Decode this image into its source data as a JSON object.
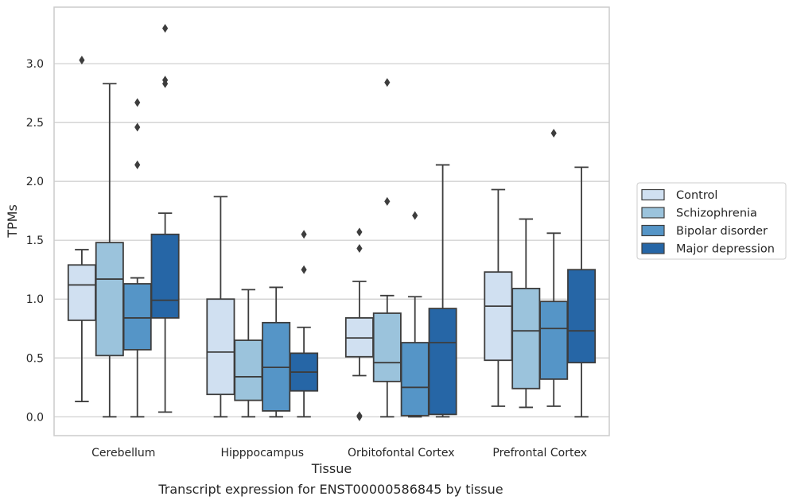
{
  "chart_data": {
    "type": "box",
    "xlabel": "Tissue",
    "ylabel": "TPMs",
    "ylim": [
      -0.16,
      3.48
    ],
    "yticks": [
      0.0,
      0.5,
      1.0,
      1.5,
      2.0,
      2.5,
      3.0
    ],
    "ytick_labels": [
      "0.0",
      "0.5",
      "1.0",
      "1.5",
      "2.0",
      "2.5",
      "3.0"
    ],
    "grid": "horizontal",
    "legend_position": "right",
    "categories": [
      "Cerebellum",
      "Hipppocampus",
      "Orbitofontal Cortex",
      "Prefrontal Cortex"
    ],
    "series": [
      {
        "name": "Control",
        "color": "#d0e0f1",
        "boxes": [
          {
            "whislo": 0.13,
            "q1": 0.82,
            "med": 1.12,
            "q3": 1.29,
            "whishi": 1.42,
            "fliers": [
              3.03
            ]
          },
          {
            "whislo": 0.0,
            "q1": 0.19,
            "med": 0.55,
            "q3": 1.0,
            "whishi": 1.87,
            "fliers": []
          },
          {
            "whislo": 0.35,
            "q1": 0.51,
            "med": 0.67,
            "q3": 0.84,
            "whishi": 1.15,
            "fliers": [
              0.0,
              0.01,
              1.43,
              1.57
            ]
          },
          {
            "whislo": 0.09,
            "q1": 0.48,
            "med": 0.94,
            "q3": 1.23,
            "whishi": 1.93,
            "fliers": []
          }
        ]
      },
      {
        "name": "Schizophrenia",
        "color": "#9bc3dc",
        "boxes": [
          {
            "whislo": 0.0,
            "q1": 0.52,
            "med": 1.17,
            "q3": 1.48,
            "whishi": 2.83,
            "fliers": []
          },
          {
            "whislo": 0.0,
            "q1": 0.14,
            "med": 0.34,
            "q3": 0.65,
            "whishi": 1.08,
            "fliers": []
          },
          {
            "whislo": 0.0,
            "q1": 0.3,
            "med": 0.46,
            "q3": 0.88,
            "whishi": 1.03,
            "fliers": [
              1.83,
              2.84
            ]
          },
          {
            "whislo": 0.08,
            "q1": 0.24,
            "med": 0.73,
            "q3": 1.09,
            "whishi": 1.68,
            "fliers": []
          }
        ]
      },
      {
        "name": "Bipolar disorder",
        "color": "#5595c7",
        "boxes": [
          {
            "whislo": 0.0,
            "q1": 0.57,
            "med": 0.84,
            "q3": 1.13,
            "whishi": 1.18,
            "fliers": [
              2.14,
              2.46,
              2.67
            ]
          },
          {
            "whislo": 0.0,
            "q1": 0.05,
            "med": 0.42,
            "q3": 0.8,
            "whishi": 1.1,
            "fliers": []
          },
          {
            "whislo": 0.0,
            "q1": 0.01,
            "med": 0.25,
            "q3": 0.63,
            "whishi": 1.02,
            "fliers": [
              1.71
            ]
          },
          {
            "whislo": 0.09,
            "q1": 0.32,
            "med": 0.75,
            "q3": 0.98,
            "whishi": 1.56,
            "fliers": [
              2.41
            ]
          }
        ]
      },
      {
        "name": "Major depression",
        "color": "#2666a6",
        "boxes": [
          {
            "whislo": 0.04,
            "q1": 0.84,
            "med": 0.99,
            "q3": 1.55,
            "whishi": 1.73,
            "fliers": [
              2.83,
              2.86,
              3.3
            ]
          },
          {
            "whislo": 0.0,
            "q1": 0.22,
            "med": 0.38,
            "q3": 0.54,
            "whishi": 0.76,
            "fliers": [
              1.25,
              1.55
            ]
          },
          {
            "whislo": 0.0,
            "q1": 0.02,
            "med": 0.63,
            "q3": 0.92,
            "whishi": 2.14,
            "fliers": []
          },
          {
            "whislo": 0.0,
            "q1": 0.46,
            "med": 0.73,
            "q3": 1.25,
            "whishi": 2.12,
            "fliers": []
          }
        ]
      }
    ]
  },
  "caption": "Transcript expression for ENST00000586845 by tissue"
}
